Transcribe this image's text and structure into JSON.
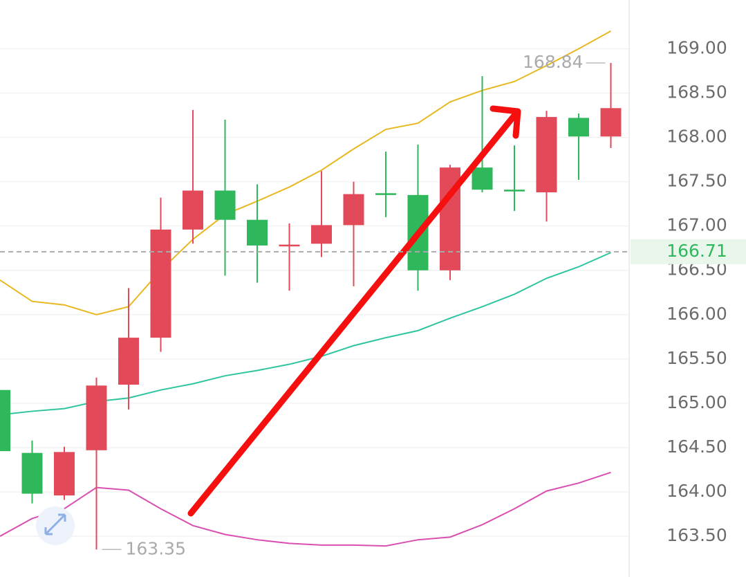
{
  "chart_data": {
    "type": "candlestick",
    "categories": [
      null,
      null,
      null,
      null,
      null,
      null,
      null,
      null,
      null,
      null,
      null,
      null,
      null,
      null,
      null,
      null,
      null,
      null,
      null,
      null
    ],
    "open": [
      165.15,
      164.44,
      163.96,
      164.47,
      165.21,
      165.74,
      166.96,
      167.4,
      167.07,
      166.77,
      166.8,
      167.01,
      167.37,
      167.35,
      166.5,
      167.66,
      167.41,
      167.38,
      168.22,
      168.01
    ],
    "high": [
      165.15,
      164.58,
      164.51,
      165.29,
      166.3,
      167.32,
      168.31,
      168.2,
      167.47,
      167.03,
      167.62,
      167.5,
      167.84,
      167.92,
      167.69,
      168.69,
      167.91,
      168.3,
      168.27,
      168.84
    ],
    "low": [
      164.46,
      163.87,
      163.91,
      163.35,
      164.93,
      165.58,
      166.8,
      166.44,
      166.36,
      166.27,
      166.65,
      166.32,
      167.1,
      166.27,
      166.39,
      167.38,
      167.17,
      167.05,
      167.52,
      167.88
    ],
    "close": [
      164.46,
      163.98,
      164.45,
      165.2,
      165.74,
      166.96,
      167.4,
      167.07,
      166.78,
      166.79,
      167.01,
      167.36,
      167.35,
      166.5,
      167.66,
      167.41,
      167.39,
      168.23,
      168.01,
      168.33
    ],
    "up_color": "#e24a5a",
    "down_color": "#2fb75b",
    "overlays": [
      {
        "color": "#e8b820",
        "values": [
          166.39,
          166.15,
          166.11,
          166.0,
          166.09,
          166.5,
          166.85,
          167.13,
          167.28,
          167.44,
          167.63,
          167.87,
          168.09,
          168.16,
          168.4,
          168.53,
          168.63,
          168.81,
          169.0,
          169.2
        ]
      },
      {
        "color": "#2ec4a0",
        "values": [
          164.87,
          164.91,
          164.94,
          165.02,
          165.06,
          165.15,
          165.22,
          165.31,
          165.37,
          165.44,
          165.53,
          165.65,
          165.74,
          165.82,
          165.96,
          166.09,
          166.23,
          166.41,
          166.54,
          166.7
        ]
      },
      {
        "color": "#d94fb0",
        "values": [
          163.5,
          163.7,
          163.81,
          164.05,
          164.02,
          163.81,
          163.62,
          163.52,
          163.46,
          163.42,
          163.4,
          163.4,
          163.39,
          163.46,
          163.49,
          163.63,
          163.81,
          164.01,
          164.1,
          164.22
        ]
      }
    ],
    "current_price": 166.71,
    "ylim": [
      163.04,
      169.55
    ],
    "yticks": [
      {
        "value": 169,
        "label": "169.00"
      },
      {
        "value": 168.5,
        "label": "168.50"
      },
      {
        "value": 168,
        "label": "168.00"
      },
      {
        "value": 167.5,
        "label": "167.50"
      },
      {
        "value": 167,
        "label": "167.00"
      },
      {
        "value": 166.5,
        "label": "166.50"
      },
      {
        "value": 166,
        "label": "166.00"
      },
      {
        "value": 165.5,
        "label": "165.50"
      },
      {
        "value": 165,
        "label": "165.00"
      },
      {
        "value": 164.5,
        "label": "164.50"
      },
      {
        "value": 164,
        "label": "164.00"
      },
      {
        "value": 163.5,
        "label": "163.50"
      }
    ],
    "grid": true
  }
}
